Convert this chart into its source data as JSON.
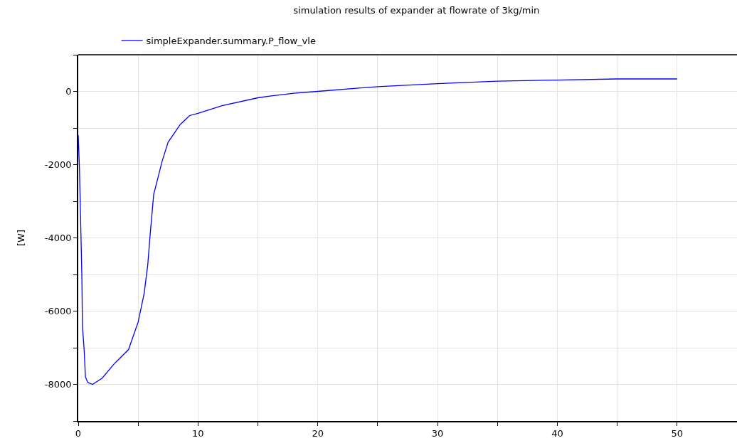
{
  "chart_data": {
    "type": "line",
    "title": "simulation results of expander at flowrate of 3kg/min",
    "ylabel": "[W]",
    "x": [
      0,
      0.1,
      0.3,
      0.35,
      0.5,
      0.6,
      0.8,
      1.2,
      2,
      3,
      4.2,
      5,
      5.5,
      5.8,
      6,
      6.3,
      6.7,
      7,
      7.5,
      8.5,
      9.3,
      10,
      12,
      15,
      16,
      18,
      20,
      25,
      30,
      35,
      40,
      45,
      50
    ],
    "series": [
      {
        "name": "simpleExpander.summary.P_flow_vle",
        "color": "#0000ff",
        "values": [
          -1200,
          -2100,
          -5000,
          -6400,
          -7100,
          -7800,
          -7950,
          -8000,
          -7830,
          -7440,
          -7050,
          -6300,
          -5520,
          -4750,
          -3920,
          -2810,
          -2300,
          -1910,
          -1390,
          -910,
          -660,
          -600,
          -390,
          -175,
          -130,
          -50,
          0,
          130,
          210,
          280,
          310,
          340,
          340
        ]
      }
    ],
    "xlim": [
      0,
      55
    ],
    "xticks": [
      0,
      {
        "value": 5,
        "label": null
      },
      10,
      {
        "value": 15,
        "label": null
      },
      20,
      {
        "value": 25,
        "label": null
      },
      30,
      {
        "value": 35,
        "label": null
      },
      40,
      {
        "value": 45,
        "label": null
      },
      50
    ],
    "ylim": [
      -9000,
      1000
    ],
    "yticks": [
      {
        "value": -9000,
        "label": null
      },
      -8000,
      {
        "value": -7000,
        "label": null
      },
      -6000,
      {
        "value": -5000,
        "label": null
      },
      -4000,
      {
        "value": -3000,
        "label": null
      },
      -2000,
      {
        "value": -1000,
        "label": null
      },
      0,
      {
        "value": 1000,
        "label": null
      }
    ],
    "grid": true,
    "legend": "top left",
    "marker": "none",
    "line_style": "solid"
  }
}
